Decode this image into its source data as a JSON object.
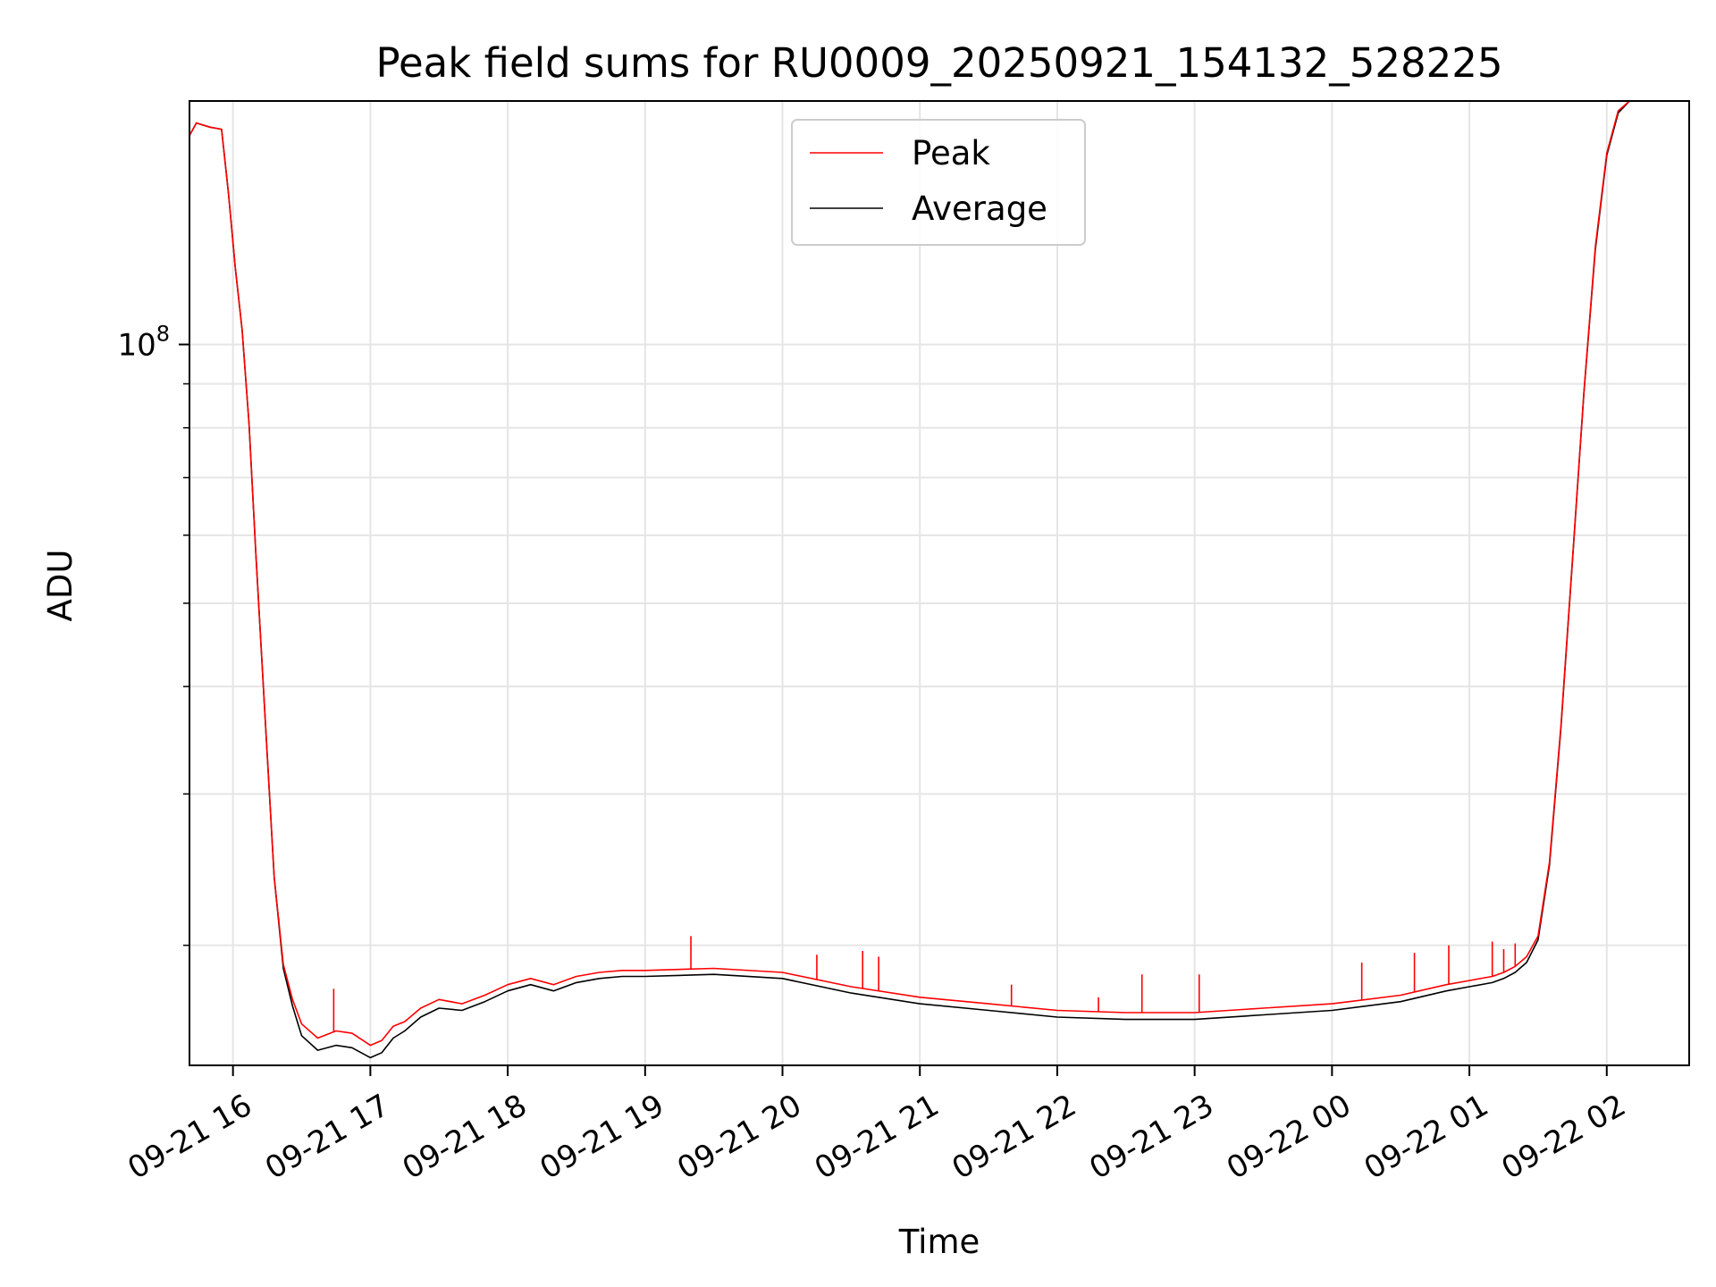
{
  "chart_data": {
    "type": "line",
    "title": "Peak field sums for RU0009_20250921_154132_528225",
    "xlabel": "Time",
    "ylabel": "ADU",
    "y_scale": "log",
    "grid": true,
    "legend_position": "top-center",
    "x_tick_labels": [
      "09-21 16",
      "09-21 17",
      "09-21 18",
      "09-21 19",
      "09-21 20",
      "09-21 21",
      "09-21 22",
      "09-21 23",
      "09-22 00",
      "09-22 01",
      "09-22 02"
    ],
    "x_ticks": [
      "2025-09-21 16:00",
      "2025-09-21 17:00",
      "2025-09-21 18:00",
      "2025-09-21 19:00",
      "2025-09-21 20:00",
      "2025-09-21 21:00",
      "2025-09-21 22:00",
      "2025-09-21 23:00",
      "2025-09-22 00:00",
      "2025-09-22 01:00",
      "2025-09-22 02:00"
    ],
    "xlim": [
      "2025-09-21 15:41",
      "2025-09-22 02:36"
    ],
    "y_tick_label_base": "10",
    "y_tick_label_exp": "8",
    "ylim": [
      14500000,
      192000000
    ],
    "series": [
      {
        "name": "Peak",
        "color": "#ff0000",
        "x": [
          "2025-09-21 15:41",
          "2025-09-21 15:44",
          "2025-09-21 15:50",
          "2025-09-21 15:55",
          "2025-09-21 15:58",
          "2025-09-21 16:01",
          "2025-09-21 16:04",
          "2025-09-21 16:07",
          "2025-09-21 16:10",
          "2025-09-21 16:14",
          "2025-09-21 16:18",
          "2025-09-21 16:22",
          "2025-09-21 16:26",
          "2025-09-21 16:30",
          "2025-09-21 16:37",
          "2025-09-21 16:45",
          "2025-09-21 16:52",
          "2025-09-21 17:00",
          "2025-09-21 17:05",
          "2025-09-21 17:10",
          "2025-09-21 17:15",
          "2025-09-21 17:22",
          "2025-09-21 17:30",
          "2025-09-21 17:40",
          "2025-09-21 17:50",
          "2025-09-21 18:00",
          "2025-09-21 18:10",
          "2025-09-21 18:20",
          "2025-09-21 18:30",
          "2025-09-21 18:40",
          "2025-09-21 18:50",
          "2025-09-21 19:00",
          "2025-09-21 19:30",
          "2025-09-21 20:00",
          "2025-09-21 20:30",
          "2025-09-21 21:00",
          "2025-09-21 21:30",
          "2025-09-21 22:00",
          "2025-09-21 22:30",
          "2025-09-21 23:00",
          "2025-09-21 23:30",
          "2025-09-22 00:00",
          "2025-09-22 00:30",
          "2025-09-22 00:50",
          "2025-09-22 01:00",
          "2025-09-22 01:10",
          "2025-09-22 01:15",
          "2025-09-22 01:20",
          "2025-09-22 01:25",
          "2025-09-22 01:30",
          "2025-09-22 01:35",
          "2025-09-22 01:40",
          "2025-09-22 01:45",
          "2025-09-22 01:50",
          "2025-09-22 01:55",
          "2025-09-22 02:00",
          "2025-09-22 02:05",
          "2025-09-22 02:10",
          "2025-09-22 02:15",
          "2025-09-22 02:20",
          "2025-09-22 02:25",
          "2025-09-22 02:30",
          "2025-09-22 02:33",
          "2025-09-22 02:36"
        ],
        "values": [
          175000000,
          181000000,
          179000000,
          178000000,
          150000000,
          123000000,
          104000000,
          81000000,
          57000000,
          37000000,
          24000000,
          19000000,
          17300000,
          16200000,
          15600000,
          15900000,
          15800000,
          15300000,
          15500000,
          16100000,
          16300000,
          16900000,
          17300000,
          17100000,
          17500000,
          18000000,
          18300000,
          18000000,
          18400000,
          18600000,
          18700000,
          18700000,
          18800000,
          18600000,
          17900000,
          17400000,
          17100000,
          16800000,
          16700000,
          16700000,
          16900000,
          17100000,
          17500000,
          18000000,
          18200000,
          18400000,
          18600000,
          18900000,
          19400000,
          20500000,
          25000000,
          36000000,
          56000000,
          88000000,
          130000000,
          167000000,
          187000000,
          192000000,
          192000000,
          192000000,
          192000000,
          192000000,
          192000000,
          192000000
        ]
      },
      {
        "name": "Average",
        "color": "#000000",
        "x": [
          "2025-09-21 15:41",
          "2025-09-21 15:44",
          "2025-09-21 15:50",
          "2025-09-21 15:55",
          "2025-09-21 15:58",
          "2025-09-21 16:01",
          "2025-09-21 16:04",
          "2025-09-21 16:07",
          "2025-09-21 16:10",
          "2025-09-21 16:14",
          "2025-09-21 16:18",
          "2025-09-21 16:22",
          "2025-09-21 16:26",
          "2025-09-21 16:30",
          "2025-09-21 16:37",
          "2025-09-21 16:45",
          "2025-09-21 16:52",
          "2025-09-21 17:00",
          "2025-09-21 17:05",
          "2025-09-21 17:10",
          "2025-09-21 17:15",
          "2025-09-21 17:22",
          "2025-09-21 17:30",
          "2025-09-21 17:40",
          "2025-09-21 17:50",
          "2025-09-21 18:00",
          "2025-09-21 18:10",
          "2025-09-21 18:20",
          "2025-09-21 18:30",
          "2025-09-21 18:40",
          "2025-09-21 18:50",
          "2025-09-21 19:00",
          "2025-09-21 19:30",
          "2025-09-21 20:00",
          "2025-09-21 20:30",
          "2025-09-21 21:00",
          "2025-09-21 21:30",
          "2025-09-21 22:00",
          "2025-09-21 22:30",
          "2025-09-21 23:00",
          "2025-09-21 23:30",
          "2025-09-22 00:00",
          "2025-09-22 00:30",
          "2025-09-22 00:50",
          "2025-09-22 01:00",
          "2025-09-22 01:10",
          "2025-09-22 01:15",
          "2025-09-22 01:20",
          "2025-09-22 01:25",
          "2025-09-22 01:30",
          "2025-09-22 01:35",
          "2025-09-22 01:40",
          "2025-09-22 01:45",
          "2025-09-22 01:50",
          "2025-09-22 01:55",
          "2025-09-22 02:00",
          "2025-09-22 02:05",
          "2025-09-22 02:10",
          "2025-09-22 02:15",
          "2025-09-22 02:20",
          "2025-09-22 02:25",
          "2025-09-22 02:30",
          "2025-09-22 02:33",
          "2025-09-22 02:36"
        ],
        "values": [
          175000000,
          181000000,
          179000000,
          178000000,
          150000000,
          123000000,
          104000000,
          81000000,
          57000000,
          37000000,
          24000000,
          18800000,
          17000000,
          15700000,
          15100000,
          15300000,
          15200000,
          14800000,
          15000000,
          15600000,
          15900000,
          16500000,
          16900000,
          16800000,
          17200000,
          17700000,
          18000000,
          17700000,
          18100000,
          18300000,
          18400000,
          18400000,
          18500000,
          18300000,
          17600000,
          17100000,
          16800000,
          16500000,
          16400000,
          16400000,
          16600000,
          16800000,
          17200000,
          17700000,
          17900000,
          18100000,
          18300000,
          18600000,
          19100000,
          20300000,
          24800000,
          35800000,
          55800000,
          87800000,
          129000000,
          166000000,
          186000000,
          192000000,
          192000000,
          192000000,
          192000000,
          192000000,
          192000000,
          192000000
        ]
      }
    ],
    "peak_spikes": [
      {
        "x": "2025-09-21 16:20",
        "y": 21500000
      },
      {
        "x": "2025-09-21 16:44",
        "y": 17800000
      },
      {
        "x": "2025-09-21 19:20",
        "y": 20500000
      },
      {
        "x": "2025-09-21 20:15",
        "y": 19500000
      },
      {
        "x": "2025-09-21 20:35",
        "y": 19700000
      },
      {
        "x": "2025-09-21 20:42",
        "y": 19400000
      },
      {
        "x": "2025-09-21 21:40",
        "y": 18000000
      },
      {
        "x": "2025-09-21 22:18",
        "y": 17400000
      },
      {
        "x": "2025-09-21 22:37",
        "y": 18500000
      },
      {
        "x": "2025-09-21 23:02",
        "y": 18500000
      },
      {
        "x": "2025-09-22 00:13",
        "y": 19100000
      },
      {
        "x": "2025-09-22 00:36",
        "y": 19600000
      },
      {
        "x": "2025-09-22 00:51",
        "y": 20000000
      },
      {
        "x": "2025-09-22 01:10",
        "y": 20200000
      },
      {
        "x": "2025-09-22 01:15",
        "y": 19800000
      },
      {
        "x": "2025-09-22 01:20",
        "y": 20100000
      }
    ]
  }
}
